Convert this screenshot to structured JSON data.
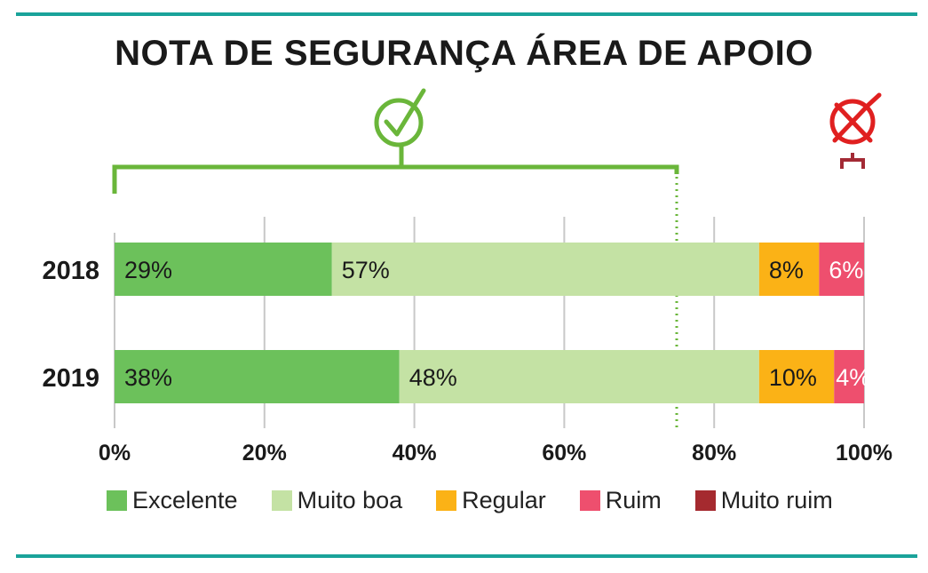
{
  "title": "NOTA DE SEGURANÇA ÁREA DE APOIO",
  "colors": {
    "accent_rule": "#1aa39a",
    "grid": "#c8c8c8",
    "check_green": "#6ab63a",
    "cross_red": "#e02020",
    "bracket_red": "#a32a35"
  },
  "icons": {
    "approve": "check-circle-icon",
    "reject": "cross-circle-icon"
  },
  "chart_data": {
    "type": "bar",
    "orientation": "horizontal",
    "stacked": true,
    "categories": [
      "2018",
      "2019"
    ],
    "series": [
      {
        "name": "Excelente",
        "color": "#6cc15b",
        "values": [
          29,
          38
        ],
        "labels": [
          "29%",
          "38%"
        ]
      },
      {
        "name": "Muito boa",
        "color": "#c4e2a4",
        "values": [
          57,
          48
        ],
        "labels": [
          "57%",
          "48%"
        ]
      },
      {
        "name": "Regular",
        "color": "#fbb216",
        "values": [
          8,
          10
        ],
        "labels": [
          "8%",
          "10%"
        ]
      },
      {
        "name": "Ruim",
        "color": "#ee4f6e",
        "values": [
          6,
          4
        ],
        "labels": [
          "6%",
          "4%"
        ]
      },
      {
        "name": "Muito ruim",
        "color": "#a52a2f",
        "values": [
          0,
          0
        ],
        "labels": [
          "",
          ""
        ]
      }
    ],
    "xlim": [
      0,
      100
    ],
    "xticks": [
      0,
      20,
      40,
      60,
      80,
      100
    ],
    "xtick_labels": [
      "0%",
      "20%",
      "40%",
      "60%",
      "80%",
      "100%"
    ],
    "grid": true,
    "threshold": 75,
    "legend_position": "bottom"
  }
}
